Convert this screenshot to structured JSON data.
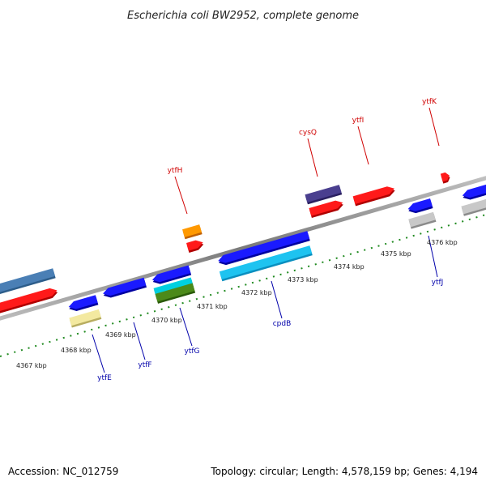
{
  "title": "Escherichia coli BW2952, complete genome",
  "footer": {
    "accession": "Accession: NC_012759",
    "summary": "Topology: circular; Length: 4,578,159 bp; Genes: 4,194"
  },
  "axis": {
    "kbp_labels": [
      "4367 kbp",
      "4368 kbp",
      "4369 kbp",
      "4370 kbp",
      "4371 kbp",
      "4372 kbp",
      "4373 kbp",
      "4374 kbp",
      "4375 kbp",
      "4376 kbp"
    ]
  },
  "colors": {
    "backbone": "#8c8c8c",
    "tick": "#1f8a1f",
    "forward_label": "#d00000",
    "reverse_label": "#0000aa"
  },
  "gene_labels": {
    "forward": [
      "ytfH",
      "cysQ",
      "ytfI",
      "ytfK"
    ],
    "reverse": [
      "ytfE",
      "ytfF",
      "ytfG",
      "cpdB",
      "ytfJ"
    ]
  }
}
